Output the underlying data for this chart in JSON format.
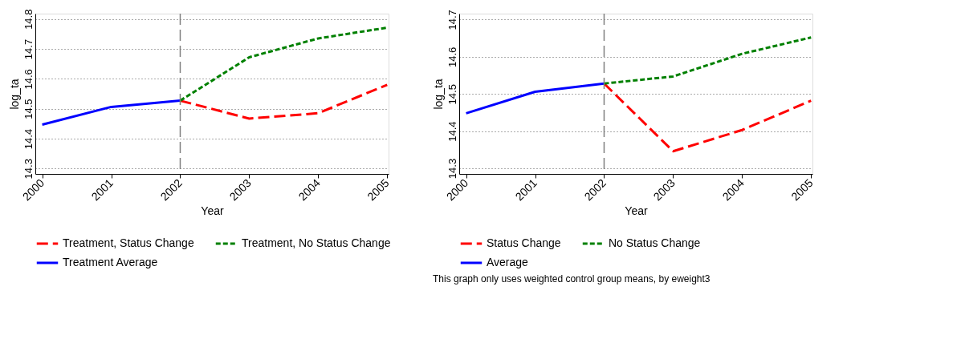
{
  "chart_data": [
    {
      "type": "line",
      "xlabel": "Year",
      "ylabel": "log_ta",
      "xlim": [
        1999.9,
        2005.02
      ],
      "xticks": [
        2000,
        2001,
        2002,
        2003,
        2004,
        2005
      ],
      "ylim": [
        14.282,
        14.818
      ],
      "yticks": [
        14.3,
        14.4,
        14.5,
        14.6,
        14.7,
        14.8
      ],
      "grid": "y",
      "legend": "bottom",
      "marker": "none",
      "series": [
        {
          "name": "Treatment, Status Change",
          "color": "#ff0000",
          "line_style": "dashed",
          "x": [
            2002,
            2003,
            2004,
            2005
          ],
          "values": [
            14.527,
            14.467,
            14.485,
            14.58
          ]
        },
        {
          "name": "Treatment, No Status Change",
          "color": "#008000",
          "line_style": "dotted",
          "x": [
            2002,
            2003,
            2004,
            2005
          ],
          "values": [
            14.527,
            14.672,
            14.735,
            14.771
          ]
        },
        {
          "name": "Treatment Average",
          "color": "#0000ff",
          "line_style": "solid",
          "x": [
            2000,
            2001,
            2002
          ],
          "values": [
            14.447,
            14.506,
            14.527
          ]
        }
      ],
      "ref_lines": [
        {
          "axis": "x",
          "value": 2002,
          "color": "#808080",
          "line_style": "dashed"
        }
      ]
    },
    {
      "type": "line",
      "xlabel": "Year",
      "ylabel": "log_ta",
      "xlim": [
        1999.9,
        2005.02
      ],
      "xticks": [
        2000,
        2001,
        2002,
        2003,
        2004,
        2005
      ],
      "ylim": [
        14.285,
        14.716
      ],
      "yticks": [
        14.3,
        14.4,
        14.5,
        14.6,
        14.7
      ],
      "grid": "y",
      "legend": "bottom",
      "marker": "none",
      "series": [
        {
          "name": "Status Change",
          "color": "#ff0000",
          "line_style": "dashed",
          "x": [
            2002,
            2003,
            2004,
            2005
          ],
          "values": [
            14.528,
            14.346,
            14.403,
            14.482
          ]
        },
        {
          "name": "No Status Change",
          "color": "#008000",
          "line_style": "dotted",
          "x": [
            2002,
            2003,
            2004,
            2005
          ],
          "values": [
            14.528,
            14.547,
            14.608,
            14.652
          ]
        },
        {
          "name": "Average",
          "color": "#0000ff",
          "line_style": "solid",
          "x": [
            2000,
            2001,
            2002
          ],
          "values": [
            14.448,
            14.506,
            14.528
          ]
        }
      ],
      "ref_lines": [
        {
          "axis": "x",
          "value": 2002,
          "color": "#808080",
          "line_style": "dashed"
        }
      ],
      "annotations": [
        "This graph only uses weighted control group means, by eweight3"
      ]
    }
  ]
}
